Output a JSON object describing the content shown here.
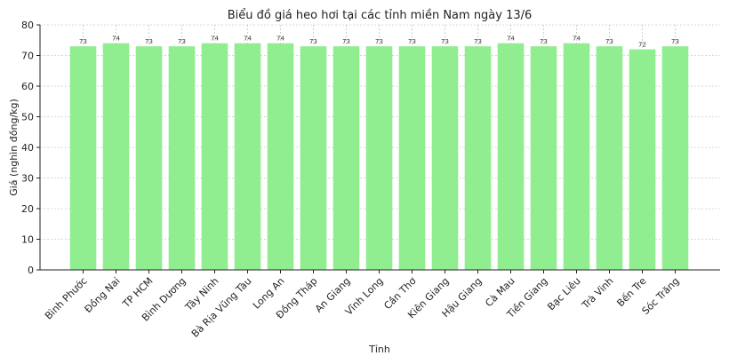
{
  "chart_data": {
    "type": "bar",
    "title": "Biểu đồ giá heo hơi tại các tỉnh miền Nam ngày 13/6",
    "xlabel": "Tỉnh",
    "ylabel": "Giá (nghìn đồng/kg)",
    "ylim": [
      0,
      80
    ],
    "yticks": [
      0,
      10,
      20,
      30,
      40,
      50,
      60,
      70,
      80
    ],
    "grid": true,
    "bar_color": "#90ee90",
    "categories": [
      "Bình Phước",
      "Đồng Nai",
      "TP HCM",
      "Bình Dương",
      "Tây Ninh",
      "Bà Rịa  Vũng Tàu",
      "Long An",
      "Đồng Tháp",
      "An Giang",
      "Vĩnh Long",
      "Cần Thơ",
      "Kiên Giang",
      "Hậu Giang",
      "Cà Mau",
      "Tiền Giang",
      "Bạc Liêu",
      "Trà Vinh",
      "Bến Tre",
      "Sóc Trăng"
    ],
    "values": [
      73,
      74,
      73,
      73,
      74,
      74,
      74,
      73,
      73,
      73,
      73,
      73,
      73,
      74,
      73,
      74,
      73,
      72,
      73
    ]
  }
}
